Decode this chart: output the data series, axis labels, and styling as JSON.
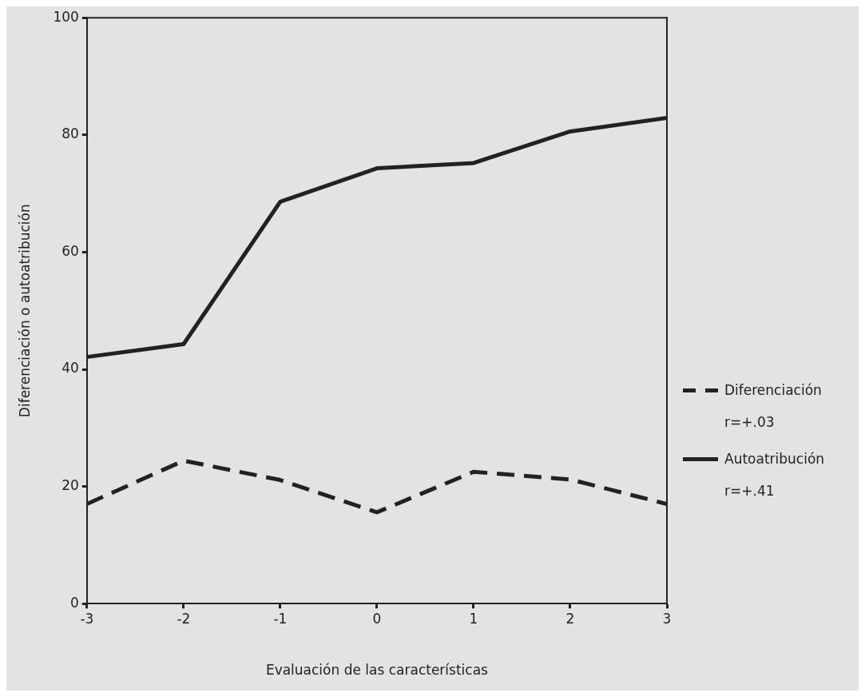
{
  "chart_data": {
    "type": "line",
    "xlabel": "Evaluación de las características",
    "ylabel": "Diferenciación o autoatribución",
    "x": [
      -3,
      -2,
      -1,
      0,
      1,
      2,
      3
    ],
    "xlim": [
      -3,
      3
    ],
    "xticks": [
      -3,
      -2,
      -1,
      0,
      1,
      2,
      3
    ],
    "ylim": [
      0,
      100
    ],
    "yticks": [
      0,
      20,
      40,
      60,
      80,
      100
    ],
    "grid": false,
    "legend": "right",
    "marker": "none",
    "series": [
      {
        "name": "Diferenciación",
        "color": "#222222",
        "line_style": "dashed",
        "values": [
          17.0,
          24.4,
          21.1,
          15.6,
          22.5,
          21.2,
          17.0
        ]
      },
      {
        "name": "Autoatribución",
        "color": "#222222",
        "line_style": "solid",
        "values": [
          42.1,
          44.3,
          68.6,
          74.3,
          75.2,
          80.6,
          82.9
        ]
      }
    ],
    "annotations": [
      "r=+.03",
      "r=+.41"
    ]
  }
}
